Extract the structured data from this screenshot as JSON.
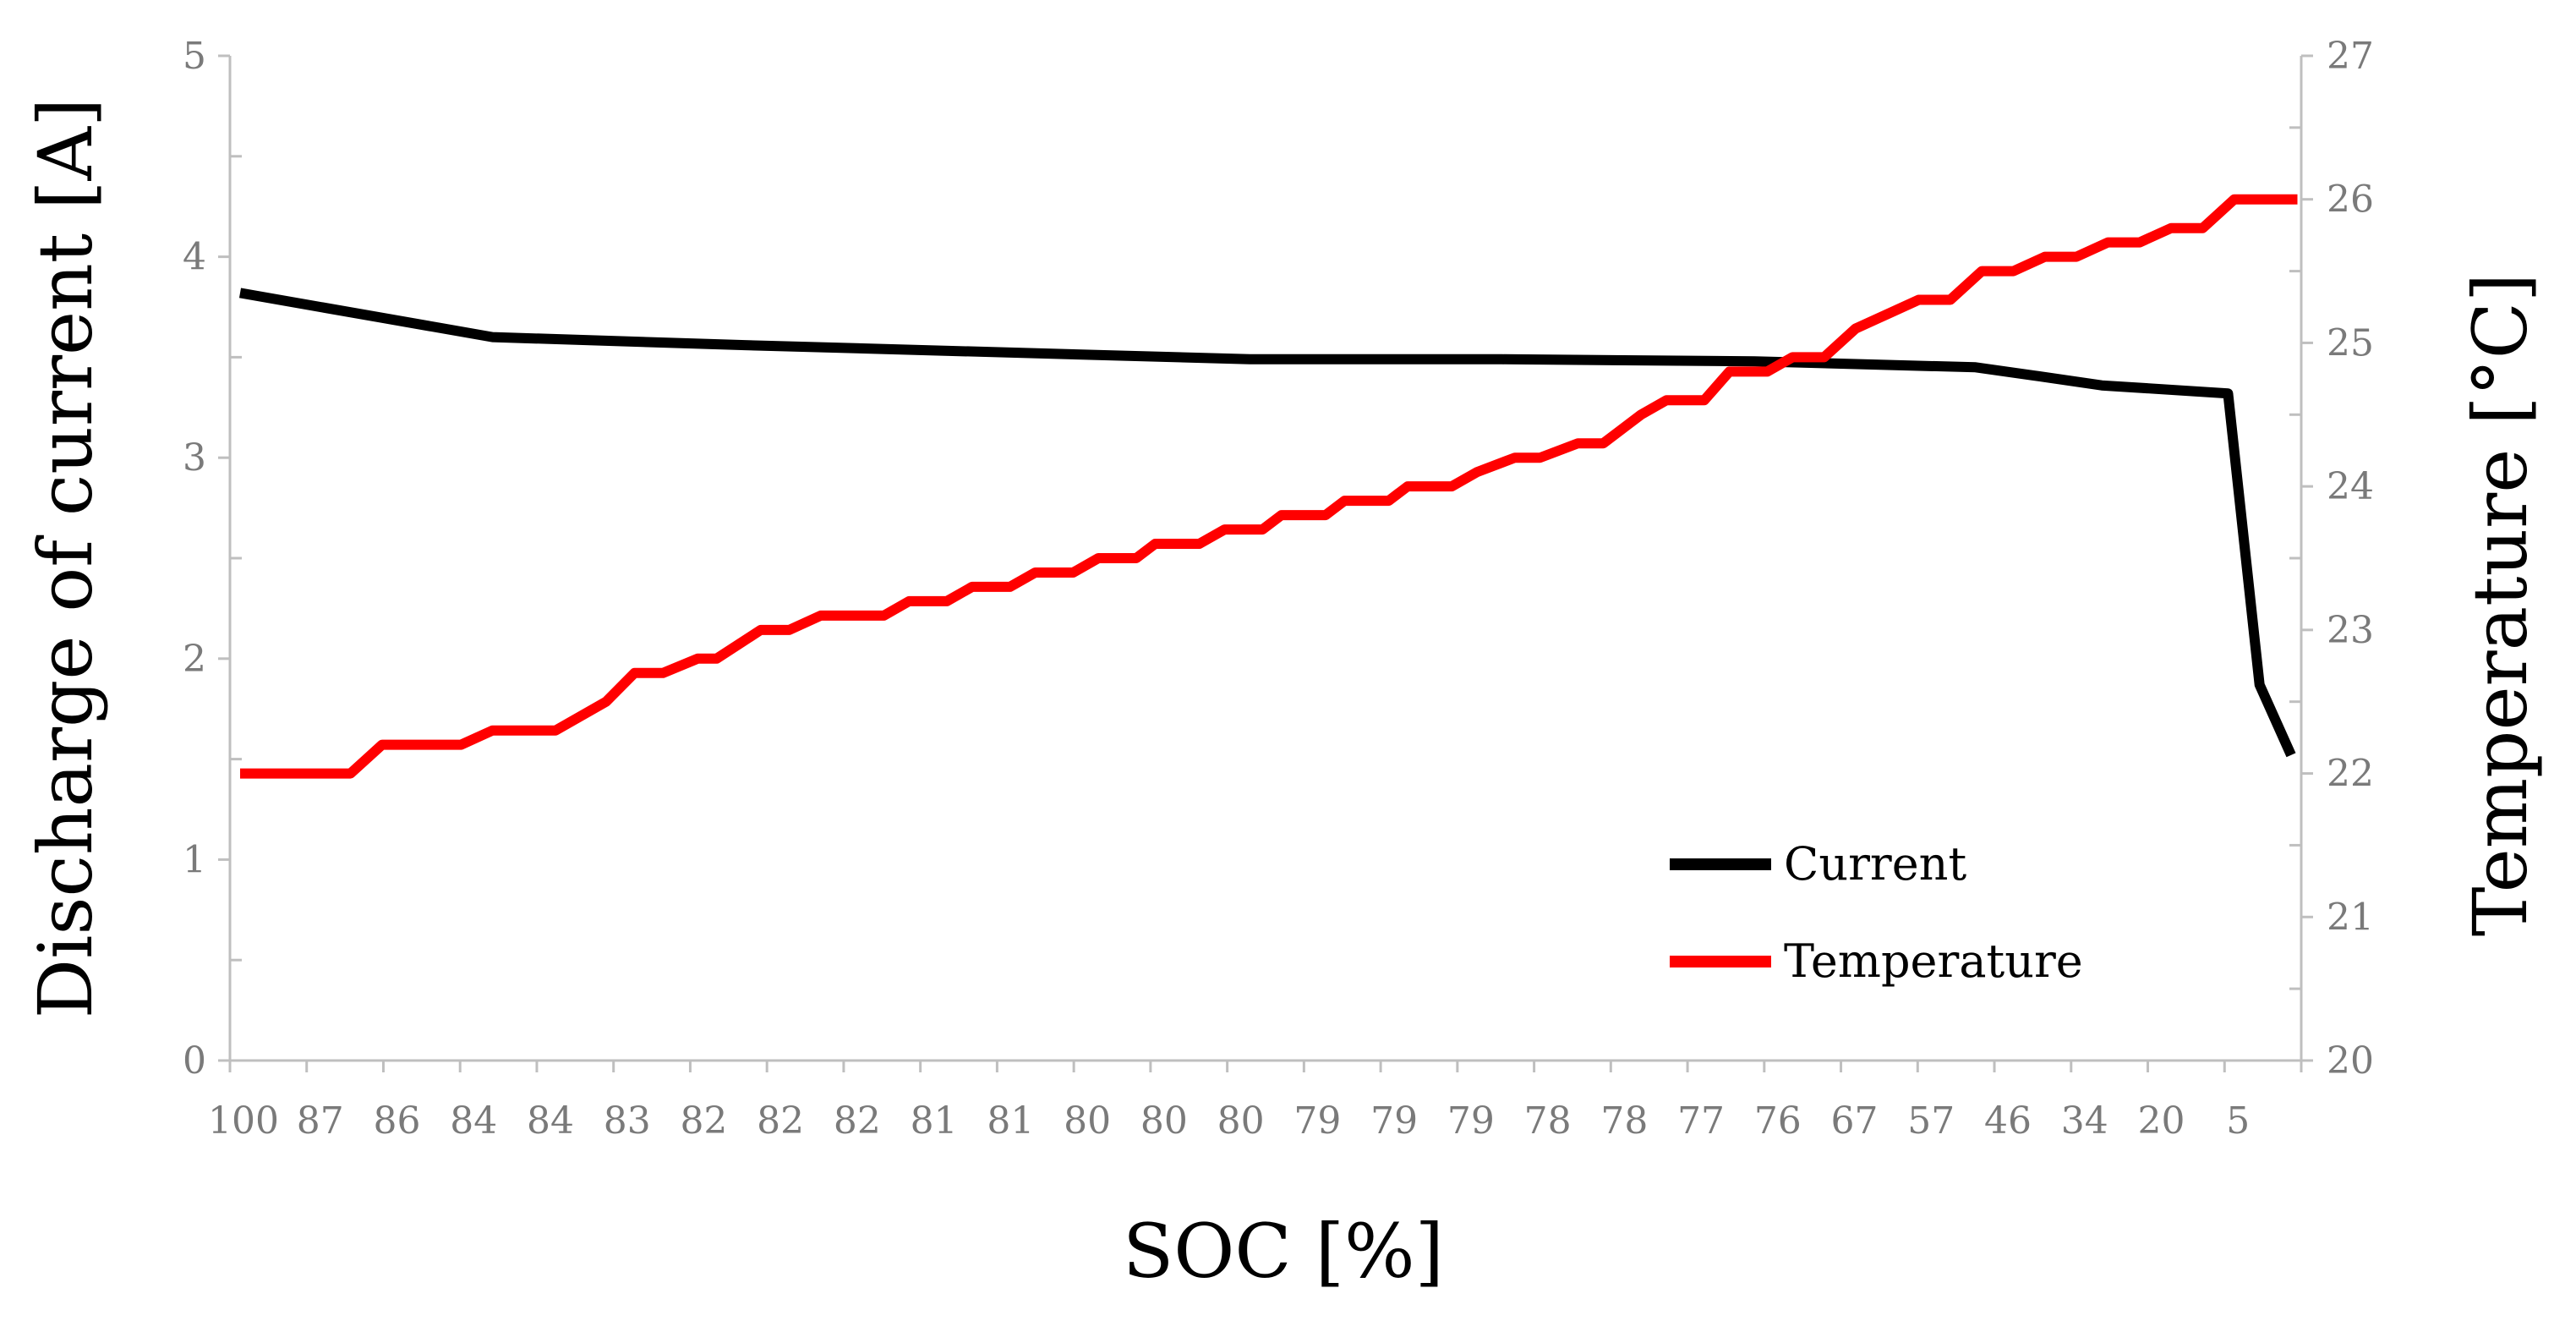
{
  "chart_data": {
    "type": "line",
    "title": "",
    "xlabel": "SOC [%]",
    "ylabel": "Discharge of current [A]",
    "y2label": "Temperature [°C]",
    "categories": [
      "100",
      "87",
      "86",
      "84",
      "84",
      "83",
      "82",
      "82",
      "82",
      "81",
      "81",
      "80",
      "80",
      "80",
      "79",
      "79",
      "79",
      "78",
      "78",
      "77",
      "76",
      "67",
      "57",
      "46",
      "34",
      "20",
      "5"
    ],
    "ylim": [
      0,
      5
    ],
    "yticks": [
      0,
      1,
      2,
      3,
      4,
      5
    ],
    "y2lim": [
      20,
      27
    ],
    "y2ticks": [
      20,
      21,
      22,
      23,
      24,
      25,
      26,
      27
    ],
    "grid": false,
    "legend_position": "lower-right",
    "series": [
      {
        "name": "Current",
        "axis": "left",
        "color": "#000000",
        "x": [
          0,
          4,
          6.0,
          8,
          16,
          20,
          24,
          27.5,
          28.4,
          29.5,
          31.5,
          32,
          32.5
        ],
        "values": [
          3.82,
          3.6,
          3.58,
          3.56,
          3.49,
          3.49,
          3.48,
          3.45,
          3.41,
          3.36,
          3.32,
          1.87,
          1.52
        ]
      },
      {
        "name": "Temperature",
        "axis": "right",
        "color": "#ff0000",
        "x": [
          0,
          1.75,
          2.25,
          3.5,
          4.0,
          5.0,
          5.8,
          6.25,
          6.7,
          7.25,
          7.55,
          8.25,
          8.7,
          9.2,
          9.4,
          10.2,
          10.6,
          11.2,
          11.6,
          12.2,
          12.6,
          13.2,
          13.6,
          14.2,
          14.5,
          15.2,
          15.6,
          16.2,
          16.5,
          17.2,
          17.5,
          18.2,
          18.5,
          19.2,
          19.6,
          20.2,
          20.6,
          21.2,
          21.6,
          22.2,
          22.6,
          23.2,
          23.6,
          24.2,
          24.6,
          25.1,
          25.6,
          26.1,
          26.6,
          27.1,
          27.6,
          28.1,
          28.6,
          29.1,
          29.6,
          30.1,
          30.6,
          31.1,
          31.6,
          32.1,
          32.6
        ],
        "values": [
          22.0,
          22.0,
          22.2,
          22.2,
          22.3,
          22.3,
          22.5,
          22.7,
          22.7,
          22.8,
          22.8,
          23.0,
          23.0,
          23.1,
          23.1,
          23.1,
          23.2,
          23.2,
          23.3,
          23.3,
          23.4,
          23.4,
          23.5,
          23.5,
          23.6,
          23.6,
          23.7,
          23.7,
          23.8,
          23.8,
          23.9,
          23.9,
          24.0,
          24.0,
          24.1,
          24.2,
          24.2,
          24.3,
          24.3,
          24.5,
          24.6,
          24.6,
          24.8,
          24.8,
          24.9,
          24.9,
          25.1,
          25.2,
          25.3,
          25.3,
          25.5,
          25.5,
          25.6,
          25.6,
          25.7,
          25.7,
          25.8,
          25.8,
          26.0,
          26.0,
          26.0
        ]
      }
    ]
  }
}
